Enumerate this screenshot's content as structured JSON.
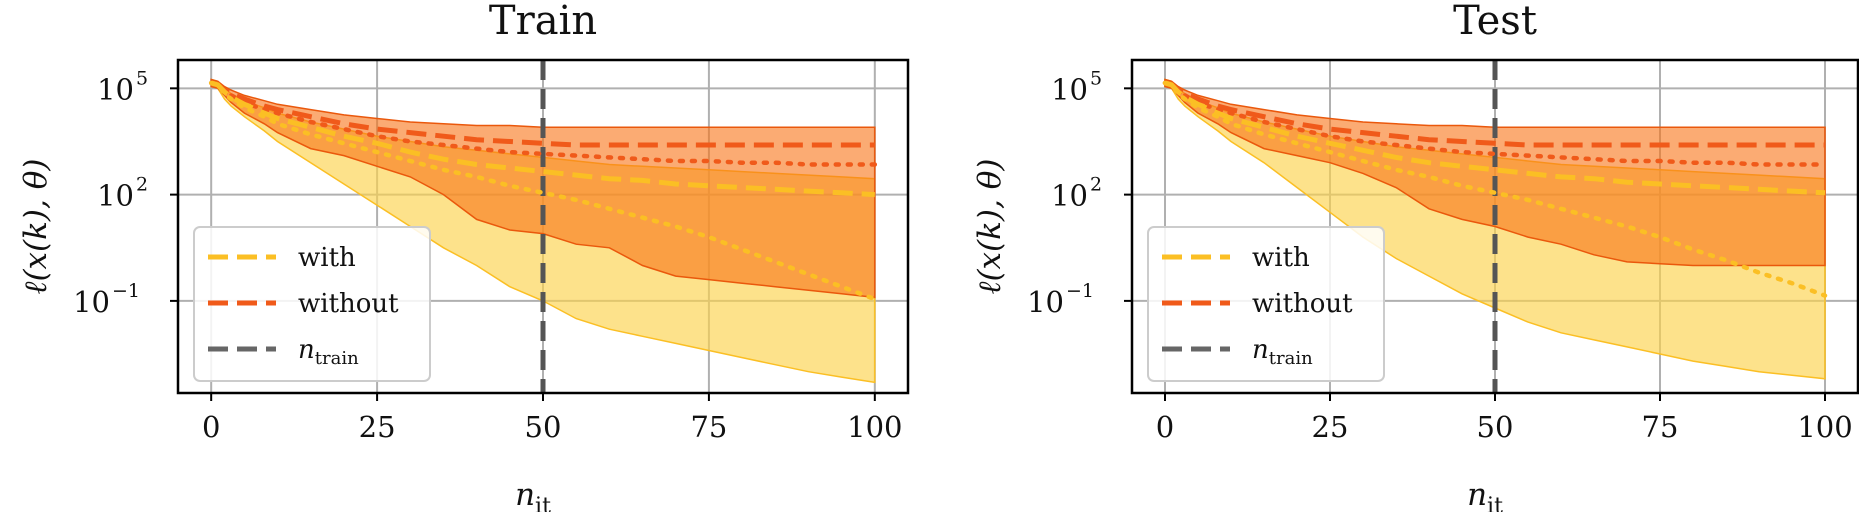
{
  "figure": {
    "panels": [
      {
        "title": "Train",
        "ylabel": "ℓ(x(k), θ)",
        "xlabel": "n",
        "xlabel_sub": "it",
        "legend": [
          {
            "label": "with",
            "sub": "",
            "color": "#fbbf24",
            "style": "dashed"
          },
          {
            "label": "without",
            "sub": "",
            "color": "#f05a1a",
            "style": "dashed"
          },
          {
            "label": "n",
            "sub": "train",
            "color": "#666666",
            "style": "dashed"
          }
        ]
      },
      {
        "title": "Test",
        "ylabel": "ℓ(x(k), θ)",
        "xlabel": "n",
        "xlabel_sub": "it",
        "legend": [
          {
            "label": "with",
            "sub": "",
            "color": "#fbbf24",
            "style": "dashed"
          },
          {
            "label": "without",
            "sub": "",
            "color": "#f05a1a",
            "style": "dashed"
          },
          {
            "label": "n",
            "sub": "train",
            "color": "#666666",
            "style": "dashed"
          }
        ]
      }
    ]
  },
  "chart_data": [
    {
      "type": "line",
      "title": "Train",
      "xlabel": "n_it",
      "ylabel": "ℓ(x^(k), θ)",
      "yscale": "log",
      "xlim": [
        -5,
        105
      ],
      "ylim_log10": [
        -3.6,
        5.8
      ],
      "xticks": [
        0,
        25,
        50,
        75,
        100
      ],
      "xtick_labels": [
        "0",
        "25",
        "50",
        "75",
        "100"
      ],
      "yticks_log10": [
        5,
        2,
        -1
      ],
      "ytick_labels": [
        {
          "base": "10",
          "exp": "5"
        },
        {
          "base": "10",
          "exp": "2"
        },
        {
          "base": "10",
          "exp": "−1"
        }
      ],
      "grid": true,
      "legend_position": "lower-left",
      "vline": {
        "x": 50,
        "label": "n_train",
        "color": "#555555"
      },
      "x": [
        0,
        1,
        2,
        3,
        5,
        8,
        10,
        15,
        20,
        25,
        30,
        35,
        40,
        45,
        50,
        55,
        60,
        65,
        70,
        75,
        80,
        85,
        90,
        95,
        100
      ],
      "series": [
        {
          "name": "with",
          "color": "#fbbf24",
          "mean_log10": [
            5.15,
            5.1,
            4.9,
            4.75,
            4.55,
            4.3,
            4.15,
            3.9,
            3.65,
            3.45,
            3.2,
            3.0,
            2.85,
            2.75,
            2.65,
            2.55,
            2.45,
            2.4,
            2.3,
            2.25,
            2.2,
            2.15,
            2.1,
            2.05,
            2.0
          ],
          "median_log10": [
            5.15,
            5.1,
            4.85,
            4.7,
            4.45,
            4.2,
            4.0,
            3.7,
            3.45,
            3.2,
            2.95,
            2.7,
            2.5,
            2.25,
            2.05,
            1.85,
            1.6,
            1.35,
            1.1,
            0.8,
            0.45,
            0.1,
            -0.25,
            -0.6,
            -0.95
          ],
          "upper_log10": [
            5.25,
            5.2,
            5.0,
            4.85,
            4.65,
            4.45,
            4.3,
            4.05,
            3.85,
            3.65,
            3.5,
            3.35,
            3.25,
            3.15,
            3.05,
            2.95,
            2.85,
            2.8,
            2.75,
            2.7,
            2.65,
            2.6,
            2.55,
            2.5,
            2.45
          ],
          "lower_log10": [
            5.05,
            5.0,
            4.7,
            4.5,
            4.2,
            3.8,
            3.5,
            2.9,
            2.3,
            1.7,
            1.1,
            0.5,
            0.0,
            -0.6,
            -1.0,
            -1.5,
            -1.8,
            -2.0,
            -2.2,
            -2.4,
            -2.6,
            -2.8,
            -3.0,
            -3.15,
            -3.3
          ]
        },
        {
          "name": "without",
          "color": "#f05a1a",
          "mean_log10": [
            5.15,
            5.1,
            4.95,
            4.85,
            4.7,
            4.5,
            4.4,
            4.2,
            4.0,
            3.85,
            3.75,
            3.65,
            3.55,
            3.5,
            3.45,
            3.4,
            3.4,
            3.4,
            3.4,
            3.4,
            3.4,
            3.4,
            3.4,
            3.4,
            3.4
          ],
          "median_log10": [
            5.15,
            5.1,
            4.95,
            4.8,
            4.6,
            4.4,
            4.3,
            4.05,
            3.85,
            3.65,
            3.5,
            3.4,
            3.3,
            3.2,
            3.15,
            3.1,
            3.05,
            3.0,
            2.95,
            2.95,
            2.9,
            2.9,
            2.85,
            2.85,
            2.85
          ],
          "upper_log10": [
            5.25,
            5.2,
            5.05,
            4.95,
            4.8,
            4.65,
            4.55,
            4.4,
            4.25,
            4.15,
            4.05,
            4.0,
            3.95,
            3.95,
            3.9,
            3.9,
            3.9,
            3.9,
            3.9,
            3.9,
            3.9,
            3.9,
            3.9,
            3.9,
            3.9
          ],
          "lower_log10": [
            5.05,
            5.0,
            4.8,
            4.6,
            4.3,
            4.0,
            3.75,
            3.3,
            3.1,
            2.8,
            2.5,
            2.0,
            1.3,
            1.0,
            0.9,
            0.6,
            0.5,
            0.0,
            -0.3,
            -0.4,
            -0.5,
            -0.6,
            -0.7,
            -0.8,
            -0.9
          ]
        }
      ]
    },
    {
      "type": "line",
      "title": "Test",
      "xlabel": "n_it",
      "ylabel": "ℓ(x^(k), θ)",
      "yscale": "log",
      "xlim": [
        -5,
        105
      ],
      "ylim_log10": [
        -3.6,
        5.8
      ],
      "xticks": [
        0,
        25,
        50,
        75,
        100
      ],
      "xtick_labels": [
        "0",
        "25",
        "50",
        "75",
        "100"
      ],
      "yticks_log10": [
        5,
        2,
        -1
      ],
      "ytick_labels": [
        {
          "base": "10",
          "exp": "5"
        },
        {
          "base": "10",
          "exp": "2"
        },
        {
          "base": "10",
          "exp": "−1"
        }
      ],
      "grid": true,
      "legend_position": "lower-left",
      "vline": {
        "x": 50,
        "label": "n_train",
        "color": "#555555"
      },
      "x": [
        0,
        1,
        2,
        3,
        5,
        8,
        10,
        15,
        20,
        25,
        30,
        35,
        40,
        45,
        50,
        55,
        60,
        65,
        70,
        75,
        80,
        85,
        90,
        95,
        100
      ],
      "series": [
        {
          "name": "with",
          "color": "#fbbf24",
          "mean_log10": [
            5.15,
            5.1,
            4.9,
            4.75,
            4.55,
            4.3,
            4.15,
            3.9,
            3.65,
            3.45,
            3.25,
            3.05,
            2.9,
            2.8,
            2.7,
            2.6,
            2.5,
            2.45,
            2.35,
            2.3,
            2.25,
            2.2,
            2.15,
            2.1,
            2.05
          ],
          "median_log10": [
            5.15,
            5.1,
            4.85,
            4.7,
            4.45,
            4.2,
            4.0,
            3.7,
            3.45,
            3.2,
            2.95,
            2.7,
            2.5,
            2.25,
            2.05,
            1.85,
            1.6,
            1.35,
            1.1,
            0.8,
            0.45,
            0.15,
            -0.2,
            -0.5,
            -0.85
          ],
          "upper_log10": [
            5.25,
            5.2,
            5.0,
            4.85,
            4.65,
            4.45,
            4.3,
            4.05,
            3.85,
            3.65,
            3.5,
            3.35,
            3.25,
            3.15,
            3.05,
            2.95,
            2.85,
            2.8,
            2.75,
            2.7,
            2.65,
            2.6,
            2.55,
            2.5,
            2.45
          ],
          "lower_log10": [
            5.05,
            5.0,
            4.7,
            4.5,
            4.2,
            3.8,
            3.5,
            2.9,
            2.2,
            1.5,
            0.8,
            0.2,
            -0.3,
            -0.8,
            -1.2,
            -1.6,
            -1.9,
            -2.1,
            -2.3,
            -2.5,
            -2.7,
            -2.85,
            -3.0,
            -3.1,
            -3.2
          ]
        },
        {
          "name": "without",
          "color": "#f05a1a",
          "mean_log10": [
            5.15,
            5.1,
            4.95,
            4.85,
            4.7,
            4.5,
            4.4,
            4.2,
            4.0,
            3.85,
            3.75,
            3.65,
            3.55,
            3.5,
            3.45,
            3.4,
            3.4,
            3.4,
            3.4,
            3.4,
            3.4,
            3.4,
            3.4,
            3.4,
            3.4
          ],
          "median_log10": [
            5.15,
            5.1,
            4.95,
            4.8,
            4.6,
            4.4,
            4.3,
            4.05,
            3.85,
            3.65,
            3.5,
            3.4,
            3.3,
            3.2,
            3.15,
            3.1,
            3.05,
            3.0,
            2.95,
            2.95,
            2.9,
            2.9,
            2.85,
            2.85,
            2.85
          ],
          "upper_log10": [
            5.25,
            5.2,
            5.05,
            4.95,
            4.8,
            4.65,
            4.55,
            4.4,
            4.25,
            4.15,
            4.05,
            4.0,
            3.95,
            3.95,
            3.9,
            3.9,
            3.9,
            3.9,
            3.9,
            3.9,
            3.9,
            3.9,
            3.9,
            3.9,
            3.9
          ],
          "lower_log10": [
            5.05,
            5.0,
            4.8,
            4.6,
            4.3,
            4.0,
            3.75,
            3.3,
            3.1,
            2.9,
            2.6,
            2.2,
            1.6,
            1.3,
            1.1,
            0.8,
            0.6,
            0.3,
            0.1,
            0.05,
            0.0,
            0.0,
            0.0,
            0.0,
            0.0
          ]
        }
      ]
    }
  ]
}
